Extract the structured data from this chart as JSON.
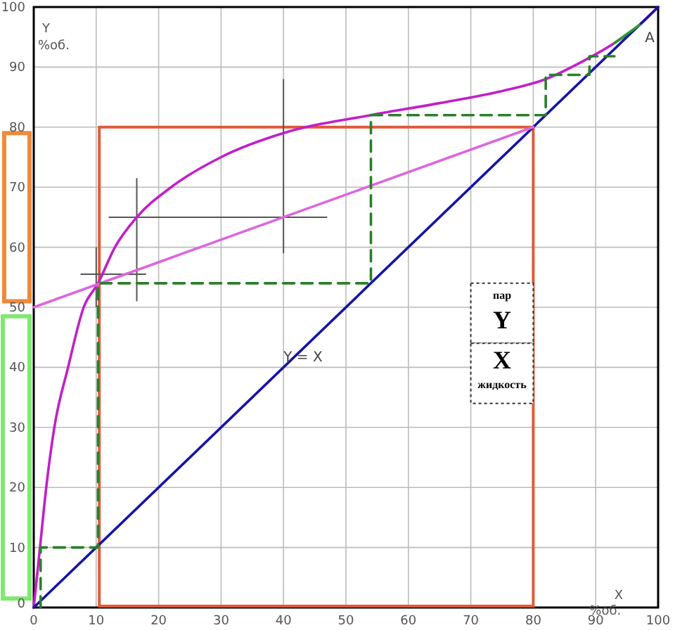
{
  "chart_data": {
    "type": "line",
    "xlabel": "X %об.",
    "ylabel": "Y %об.",
    "xlim": [
      0,
      100
    ],
    "ylim": [
      0,
      100
    ],
    "xticks": [
      0,
      10,
      20,
      30,
      40,
      50,
      60,
      70,
      80,
      90,
      100
    ],
    "yticks": [
      0,
      10,
      20,
      30,
      40,
      50,
      60,
      70,
      80,
      90,
      100
    ],
    "grid": true,
    "marker": "none",
    "series": [
      {
        "color": "#c21fc9",
        "x": [
          0,
          1,
          2,
          3.3,
          5.5,
          8,
          10.3,
          13,
          16.5,
          22,
          30,
          40,
          54,
          65,
          75,
          82,
          88,
          93,
          97,
          100
        ],
        "values": [
          0,
          10,
          20,
          30,
          40,
          50,
          54,
          60,
          65,
          70,
          75,
          79,
          82,
          84,
          86,
          88,
          91,
          94,
          97,
          100
        ]
      },
      {
        "color": "#1414a8",
        "x": [
          0,
          100
        ],
        "values": [
          0,
          100
        ]
      },
      {
        "color": "#dd66dd",
        "x": [
          0,
          80
        ],
        "values": [
          50,
          80
        ]
      },
      {
        "color": "#2a7f2a",
        "line_style": "dashed",
        "x": [
          1.1,
          1.1,
          10.3,
          10.3,
          54,
          54,
          82,
          82,
          89,
          89,
          93
        ],
        "values": [
          0,
          10,
          10,
          54,
          54,
          82,
          82,
          88.7,
          88.7,
          91.8,
          91.8
        ]
      },
      {
        "color": "#2a9a2a",
        "x": [
          93,
          97
        ],
        "values": [
          94,
          97
        ]
      }
    ],
    "annotations": [
      "Y = X",
      {
        "text": "A",
        "x": 97,
        "y": 97
      },
      "пар",
      "Y",
      "X",
      "жидкость"
    ]
  }
}
